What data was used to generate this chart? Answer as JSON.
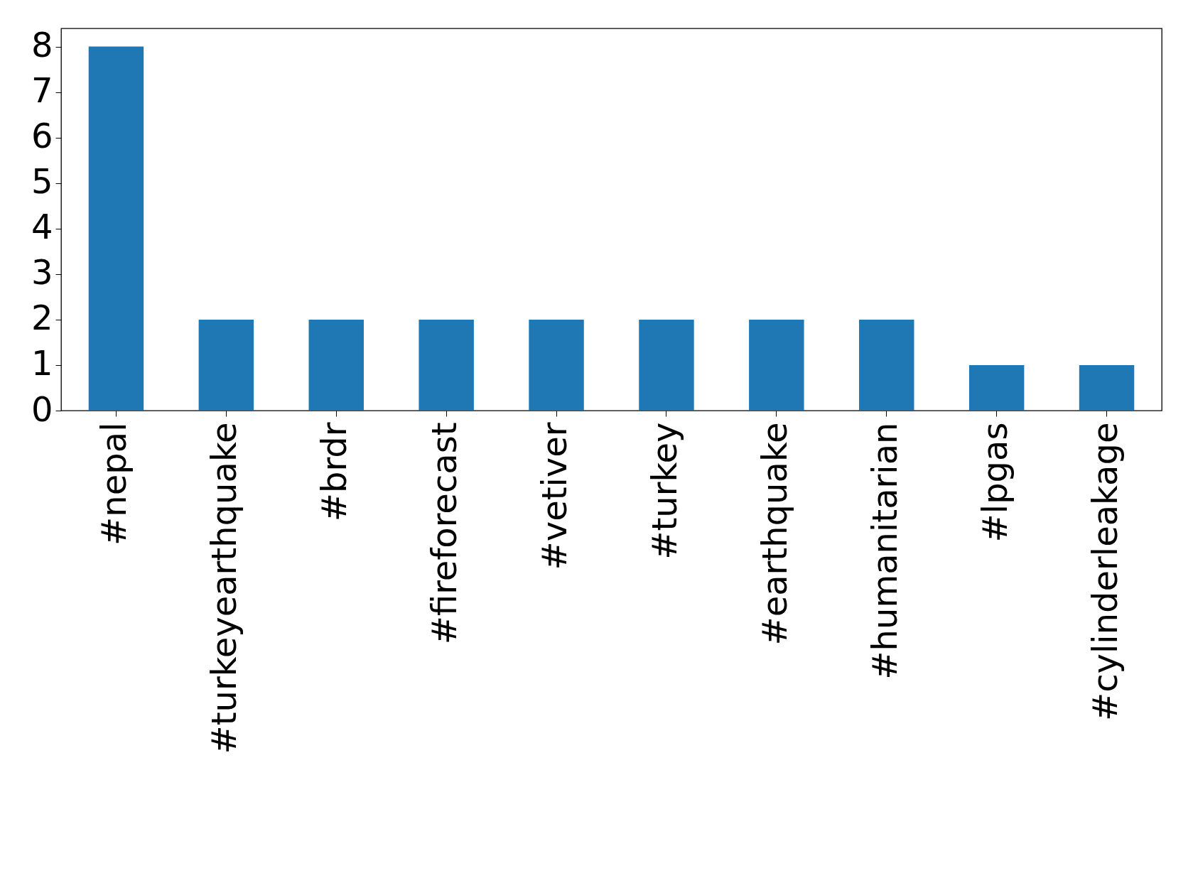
{
  "chart_data": {
    "type": "bar",
    "categories": [
      "#nepal",
      "#turkeyearthquake",
      "#brdr",
      "#fireforecast",
      "#vetiver",
      "#turkey",
      "#earthquake",
      "#humanitarian",
      "#lpgas",
      "#cylinderleakage"
    ],
    "values": [
      8,
      2,
      2,
      2,
      2,
      2,
      2,
      2,
      1,
      1
    ],
    "color": "#1f77b4",
    "ylim": [
      0,
      8.4
    ],
    "yticks": [
      0,
      1,
      2,
      3,
      4,
      5,
      6,
      7,
      8
    ],
    "grid": false
  }
}
